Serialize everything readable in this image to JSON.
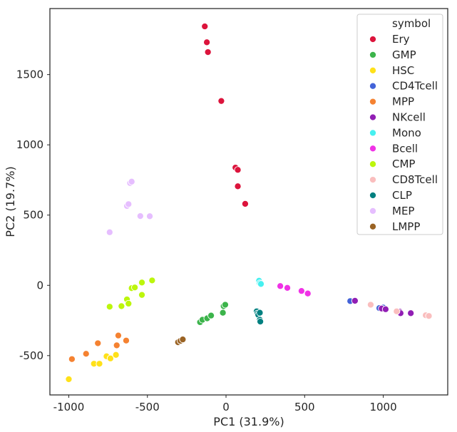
{
  "chart_data": {
    "type": "scatter",
    "title": "",
    "xlabel": "PC1 (31.9%)",
    "ylabel": "PC2 (19.7%)",
    "xlim": [
      -1120,
      1410
    ],
    "ylim": [
      -780,
      1970
    ],
    "xticks": [
      -1000,
      -500,
      0,
      500,
      1000
    ],
    "yticks": [
      -500,
      0,
      500,
      1000,
      1500
    ],
    "legend_title": "symbol",
    "legend_position": "top-right",
    "series": [
      {
        "name": "Ery",
        "color": "#dc143c",
        "points": [
          [
            -135,
            1843
          ],
          [
            -122,
            1730
          ],
          [
            -115,
            1660
          ],
          [
            -30,
            1312
          ],
          [
            60,
            838
          ],
          [
            75,
            822
          ],
          [
            75,
            705
          ],
          [
            122,
            580
          ]
        ]
      },
      {
        "name": "GMP",
        "color": "#3cb44b",
        "points": [
          [
            -165,
            -262
          ],
          [
            -150,
            -245
          ],
          [
            -120,
            -235
          ],
          [
            -95,
            -215
          ],
          [
            -20,
            -195
          ],
          [
            -15,
            -148
          ],
          [
            -5,
            -138
          ]
        ]
      },
      {
        "name": "HSC",
        "color": "#ffe119",
        "points": [
          [
            -1000,
            -668
          ],
          [
            -840,
            -558
          ],
          [
            -805,
            -558
          ],
          [
            -760,
            -505
          ],
          [
            -735,
            -520
          ],
          [
            -700,
            -495
          ]
        ]
      },
      {
        "name": "CD4Tcell",
        "color": "#4363d8",
        "points": [
          [
            790,
            -112
          ],
          [
            975,
            -162
          ],
          [
            995,
            -165
          ],
          [
            1000,
            -158
          ]
        ]
      },
      {
        "name": "MPP",
        "color": "#f58231",
        "points": [
          [
            -980,
            -525
          ],
          [
            -890,
            -487
          ],
          [
            -815,
            -412
          ],
          [
            -695,
            -427
          ],
          [
            -685,
            -357
          ],
          [
            -635,
            -393
          ]
        ]
      },
      {
        "name": "NKcell",
        "color": "#911eb4",
        "points": [
          [
            820,
            -110
          ],
          [
            990,
            -165
          ],
          [
            1015,
            -170
          ],
          [
            1105,
            -188
          ],
          [
            1110,
            -198
          ],
          [
            1175,
            -198
          ]
        ]
      },
      {
        "name": "Mono",
        "color": "#46f0f0",
        "points": [
          [
            210,
            33
          ],
          [
            215,
            15
          ],
          [
            222,
            10
          ]
        ]
      },
      {
        "name": "Bcell",
        "color": "#f032e6",
        "points": [
          [
            345,
            -5
          ],
          [
            390,
            -18
          ],
          [
            480,
            -40
          ],
          [
            520,
            -58
          ]
        ]
      },
      {
        "name": "CMP",
        "color": "#bcf60c",
        "points": [
          [
            -740,
            -152
          ],
          [
            -665,
            -148
          ],
          [
            -630,
            -100
          ],
          [
            -620,
            -130
          ],
          [
            -600,
            -20
          ],
          [
            -580,
            -15
          ],
          [
            -535,
            20
          ],
          [
            -535,
            -68
          ],
          [
            -470,
            35
          ]
        ]
      },
      {
        "name": "CD8Tcell",
        "color": "#fabebe",
        "points": [
          [
            920,
            -138
          ],
          [
            1085,
            -185
          ],
          [
            1270,
            -213
          ],
          [
            1290,
            -218
          ]
        ]
      },
      {
        "name": "CLP",
        "color": "#008080",
        "points": [
          [
            195,
            -185
          ],
          [
            200,
            -200
          ],
          [
            205,
            -210
          ],
          [
            215,
            -195
          ],
          [
            215,
            -245
          ],
          [
            218,
            -258
          ]
        ]
      },
      {
        "name": "MEP",
        "color": "#e6beff",
        "points": [
          [
            -740,
            378
          ],
          [
            -630,
            565
          ],
          [
            -620,
            578
          ],
          [
            -610,
            728
          ],
          [
            -600,
            738
          ],
          [
            -545,
            493
          ],
          [
            -485,
            492
          ]
        ]
      },
      {
        "name": "LMPP",
        "color": "#9a6324",
        "points": [
          [
            -305,
            -405
          ],
          [
            -290,
            -395
          ],
          [
            -275,
            -385
          ]
        ]
      }
    ]
  }
}
